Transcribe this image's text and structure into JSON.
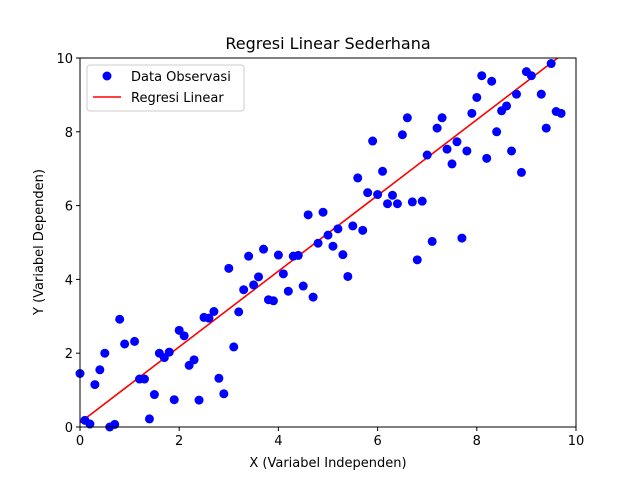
{
  "chart_data": {
    "type": "scatter",
    "title": "Regresi Linear Sederhana",
    "xlabel": "X (Variabel Independen)",
    "ylabel": "Y (Variabel Dependen)",
    "xlim": [
      0,
      10
    ],
    "ylim": [
      0,
      10
    ],
    "xticks": [
      "0",
      "2",
      "4",
      "6",
      "8",
      "10"
    ],
    "yticks": [
      "0",
      "2",
      "4",
      "6",
      "8",
      "10"
    ],
    "grid": false,
    "legend_position": "upper-left",
    "series": [
      {
        "name": "Data Observasi",
        "kind": "scatter",
        "color": "#0000ff",
        "points": [
          [
            0.0,
            1.45
          ],
          [
            0.1,
            0.18
          ],
          [
            0.2,
            0.08
          ],
          [
            0.3,
            1.15
          ],
          [
            0.4,
            1.55
          ],
          [
            0.5,
            2.0
          ],
          [
            0.6,
            0.0
          ],
          [
            0.7,
            0.07
          ],
          [
            0.8,
            2.92
          ],
          [
            0.9,
            2.25
          ],
          [
            1.1,
            2.32
          ],
          [
            1.2,
            1.3
          ],
          [
            1.3,
            1.3
          ],
          [
            1.4,
            0.22
          ],
          [
            1.5,
            0.88
          ],
          [
            1.6,
            2.0
          ],
          [
            1.7,
            1.88
          ],
          [
            1.8,
            2.03
          ],
          [
            1.9,
            0.74
          ],
          [
            2.0,
            2.62
          ],
          [
            2.1,
            2.47
          ],
          [
            2.2,
            1.67
          ],
          [
            2.3,
            1.82
          ],
          [
            2.4,
            0.73
          ],
          [
            2.5,
            2.97
          ],
          [
            2.6,
            2.95
          ],
          [
            2.7,
            3.13
          ],
          [
            2.8,
            1.32
          ],
          [
            2.9,
            0.9
          ],
          [
            3.0,
            4.3
          ],
          [
            3.1,
            2.17
          ],
          [
            3.2,
            3.12
          ],
          [
            3.3,
            3.72
          ],
          [
            3.4,
            4.63
          ],
          [
            3.5,
            3.85
          ],
          [
            3.6,
            4.07
          ],
          [
            3.7,
            4.82
          ],
          [
            3.8,
            3.45
          ],
          [
            3.9,
            3.42
          ],
          [
            4.0,
            4.66
          ],
          [
            4.1,
            4.15
          ],
          [
            4.2,
            3.68
          ],
          [
            4.3,
            4.63
          ],
          [
            4.4,
            4.65
          ],
          [
            4.5,
            3.82
          ],
          [
            4.6,
            5.75
          ],
          [
            4.7,
            3.52
          ],
          [
            4.8,
            4.98
          ],
          [
            4.9,
            5.82
          ],
          [
            5.0,
            5.2
          ],
          [
            5.1,
            4.9
          ],
          [
            5.2,
            5.37
          ],
          [
            5.3,
            4.67
          ],
          [
            5.4,
            4.08
          ],
          [
            5.5,
            5.45
          ],
          [
            5.6,
            6.75
          ],
          [
            5.7,
            5.33
          ],
          [
            5.8,
            6.35
          ],
          [
            5.9,
            7.75
          ],
          [
            6.0,
            6.3
          ],
          [
            6.1,
            6.93
          ],
          [
            6.2,
            6.05
          ],
          [
            6.3,
            6.28
          ],
          [
            6.4,
            6.05
          ],
          [
            6.5,
            7.92
          ],
          [
            6.6,
            8.38
          ],
          [
            6.7,
            6.1
          ],
          [
            6.8,
            4.53
          ],
          [
            6.9,
            6.12
          ],
          [
            7.0,
            7.37
          ],
          [
            7.1,
            5.03
          ],
          [
            7.2,
            8.1
          ],
          [
            7.3,
            8.38
          ],
          [
            7.4,
            7.53
          ],
          [
            7.5,
            7.13
          ],
          [
            7.6,
            7.73
          ],
          [
            7.7,
            5.12
          ],
          [
            7.8,
            7.48
          ],
          [
            7.9,
            8.5
          ],
          [
            8.0,
            8.93
          ],
          [
            8.1,
            9.52
          ],
          [
            8.2,
            7.28
          ],
          [
            8.3,
            9.37
          ],
          [
            8.4,
            8.0
          ],
          [
            8.5,
            8.57
          ],
          [
            8.6,
            8.7
          ],
          [
            8.7,
            7.48
          ],
          [
            8.8,
            9.02
          ],
          [
            8.9,
            6.9
          ],
          [
            9.0,
            9.63
          ],
          [
            9.1,
            9.52
          ],
          [
            9.3,
            9.02
          ],
          [
            9.4,
            8.1
          ],
          [
            9.5,
            9.85
          ],
          [
            9.6,
            8.55
          ],
          [
            9.7,
            8.5
          ]
        ]
      },
      {
        "name": "Regresi Linear",
        "kind": "line",
        "color": "#ff0000",
        "points": [
          [
            0,
            0.12
          ],
          [
            10,
            10.38
          ]
        ]
      }
    ]
  }
}
